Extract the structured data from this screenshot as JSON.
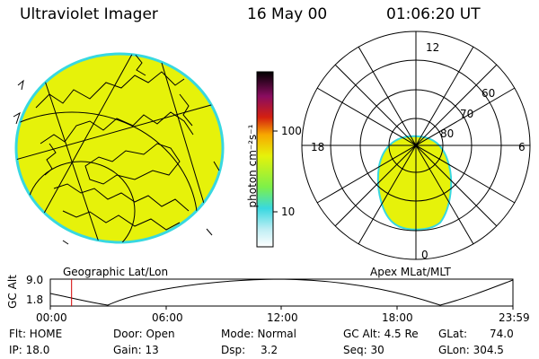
{
  "header": {
    "instrument": "Ultraviolet Imager",
    "date": "16 May 00",
    "time": "01:06:20 UT"
  },
  "left_panel": {
    "caption": "Geographic Lat/Lon",
    "fill_color": "#e6f20a"
  },
  "colorbar": {
    "label": "photon cm⁻²s⁻¹",
    "tick_100": "100",
    "tick_10": "10",
    "stops": [
      "#ffffff",
      "#38d8e0",
      "#7cf04a",
      "#e6f20a",
      "#f7a800",
      "#d42010",
      "#8a0c60",
      "#000000"
    ]
  },
  "right_panel": {
    "caption": "Apex MLat/MLT",
    "mlt_labels": {
      "top": "12",
      "left": "18",
      "right": "6",
      "bottom": "0"
    },
    "mlat_labels": [
      "60",
      "70",
      "80"
    ]
  },
  "altitude_plot": {
    "ylabel": "GC Alt",
    "y_top": "9.0",
    "y_bottom": "1.8",
    "x_ticks": [
      "00:00",
      "06:00",
      "12:00",
      "18:00",
      "23:59"
    ],
    "marker_color": "#d40000",
    "marker_time_fraction": 0.046
  },
  "info": {
    "flt": "Flt: HOME",
    "ip": "IP: 18.0",
    "door": "Door: Open",
    "gain": "Gain: 13",
    "mode": "Mode: Normal",
    "dsp": "Dsp:",
    "dsp_val": "3.2",
    "gcalt": "GC Alt: 4.5 Re",
    "seq": "Seq: 30",
    "glat": "GLat:",
    "glat_val": "74.0",
    "glon": "GLon: 304.5"
  }
}
